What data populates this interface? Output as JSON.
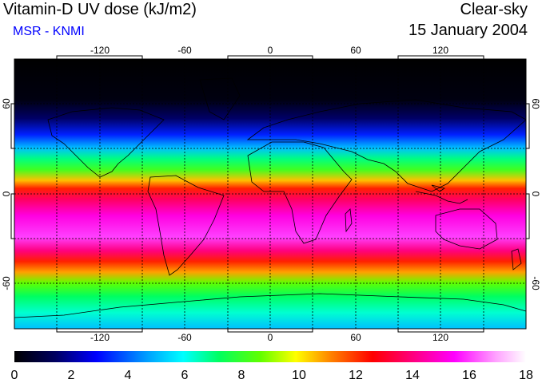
{
  "header": {
    "title": "Vitamin-D UV dose (kJ/m2)",
    "source": "MSR - KNMI",
    "condition": "Clear-sky",
    "date": "15 January 2004"
  },
  "map": {
    "lon_ticks": [
      "-120",
      "-60",
      "0",
      "60",
      "120"
    ],
    "lat_ticks": [
      "60",
      "0",
      "-60"
    ],
    "lon_range": [
      -180,
      180
    ],
    "lat_range": [
      -90,
      90
    ],
    "colors": {
      "bands": [
        "#000000",
        "#000044",
        "#0000ff",
        "#00a0ff",
        "#00ffff",
        "#00ff60",
        "#40ff00",
        "#ffff00",
        "#ff8000",
        "#ff0000",
        "#ff0080",
        "#ff00ff",
        "#ffb0ff",
        "#ffffff"
      ]
    }
  },
  "colorbar": {
    "labels": [
      "0",
      "2",
      "4",
      "6",
      "8",
      "10",
      "12",
      "14",
      "16",
      "18"
    ],
    "min": 0,
    "max": 18
  }
}
